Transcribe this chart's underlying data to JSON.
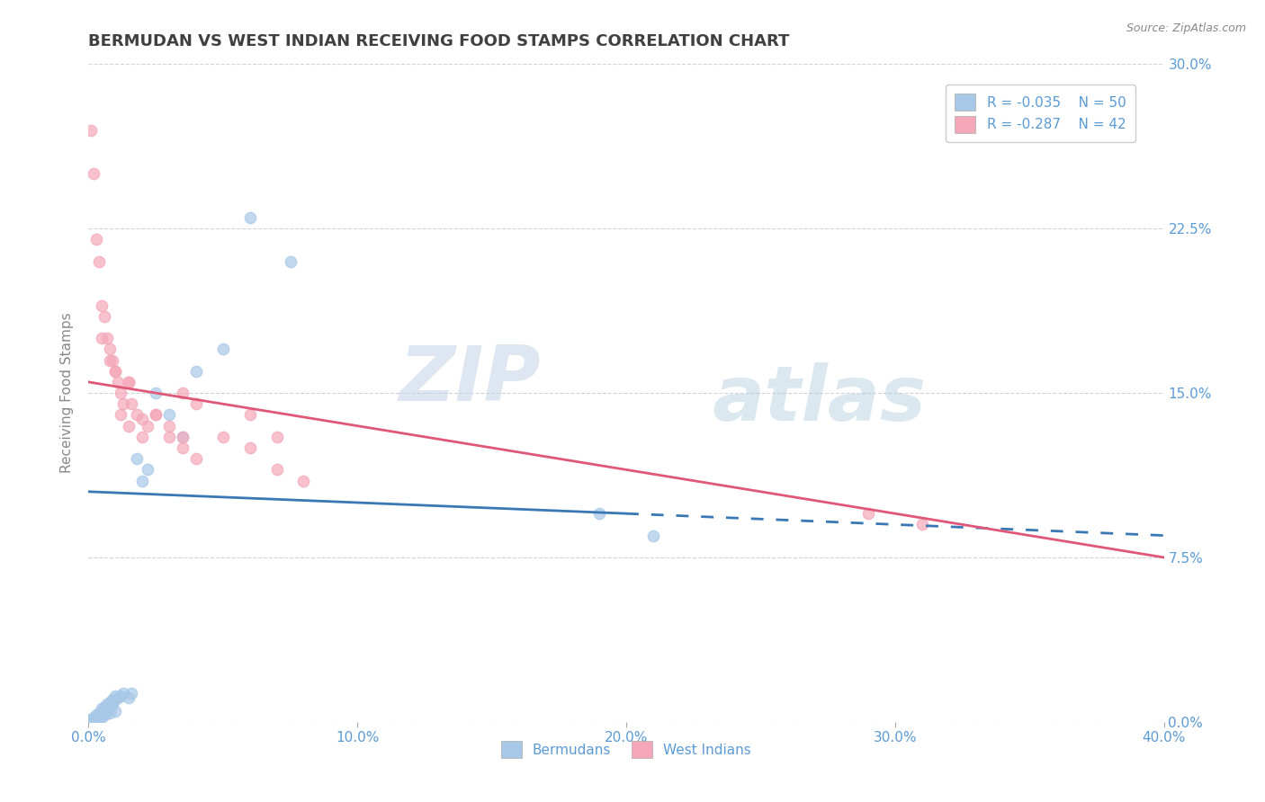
{
  "title": "BERMUDAN VS WEST INDIAN RECEIVING FOOD STAMPS CORRELATION CHART",
  "source": "Source: ZipAtlas.com",
  "xlabel_label": "Bermudans",
  "xlabel_label2": "West Indians",
  "ylabel": "Receiving Food Stamps",
  "xlim": [
    0.0,
    0.4
  ],
  "ylim": [
    0.0,
    0.3
  ],
  "xticks": [
    0.0,
    0.1,
    0.2,
    0.3,
    0.4
  ],
  "xtick_labels": [
    "0.0%",
    "10.0%",
    "20.0%",
    "30.0%",
    "40.0%"
  ],
  "yticks": [
    0.0,
    0.075,
    0.15,
    0.225,
    0.3
  ],
  "ytick_labels": [
    "0.0%",
    "7.5%",
    "15.0%",
    "22.5%",
    "30.0%"
  ],
  "legend_r1": "R = -0.035",
  "legend_n1": "N = 50",
  "legend_r2": "R = -0.287",
  "legend_n2": "N = 42",
  "blue_color": "#a8c8e8",
  "pink_color": "#f4a7b9",
  "blue_line_color": "#3a78b5",
  "pink_line_color": "#e05878",
  "text_color": "#5b9bd5",
  "title_color": "#404040",
  "grid_color": "#c8c8c8",
  "watermark_zip": "ZIP",
  "watermark_atlas": "atlas",
  "blue_line_solid_end": 0.2,
  "blue_line_start_y": 0.105,
  "blue_line_end_y": 0.085,
  "pink_line_start_y": 0.155,
  "pink_line_end_y": 0.075,
  "bermudans_x": [
    0.001,
    0.001,
    0.002,
    0.002,
    0.002,
    0.003,
    0.003,
    0.003,
    0.004,
    0.004,
    0.004,
    0.005,
    0.005,
    0.005,
    0.005,
    0.006,
    0.006,
    0.007,
    0.007,
    0.008,
    0.008,
    0.009,
    0.009,
    0.01,
    0.01,
    0.011,
    0.012,
    0.013,
    0.015,
    0.016,
    0.018,
    0.02,
    0.022,
    0.025,
    0.03,
    0.035,
    0.04,
    0.05,
    0.06,
    0.075,
    0.001,
    0.002,
    0.003,
    0.004,
    0.005,
    0.006,
    0.008,
    0.01,
    0.19,
    0.21
  ],
  "bermudans_y": [
    0.0,
    0.001,
    0.0,
    0.001,
    0.002,
    0.001,
    0.002,
    0.003,
    0.002,
    0.003,
    0.004,
    0.003,
    0.005,
    0.006,
    0.004,
    0.006,
    0.007,
    0.005,
    0.008,
    0.007,
    0.009,
    0.008,
    0.01,
    0.01,
    0.012,
    0.011,
    0.012,
    0.013,
    0.011,
    0.013,
    0.12,
    0.11,
    0.115,
    0.15,
    0.14,
    0.13,
    0.16,
    0.17,
    0.23,
    0.21,
    0.0,
    0.0,
    0.0,
    0.001,
    0.002,
    0.003,
    0.004,
    0.005,
    0.095,
    0.085
  ],
  "westindians_x": [
    0.001,
    0.002,
    0.003,
    0.004,
    0.005,
    0.006,
    0.007,
    0.008,
    0.009,
    0.01,
    0.011,
    0.012,
    0.013,
    0.015,
    0.016,
    0.018,
    0.02,
    0.022,
    0.025,
    0.03,
    0.035,
    0.04,
    0.05,
    0.06,
    0.07,
    0.08,
    0.06,
    0.07,
    0.035,
    0.04,
    0.012,
    0.015,
    0.02,
    0.025,
    0.03,
    0.035,
    0.005,
    0.008,
    0.01,
    0.015,
    0.31,
    0.29
  ],
  "westindians_y": [
    0.27,
    0.25,
    0.22,
    0.21,
    0.19,
    0.185,
    0.175,
    0.17,
    0.165,
    0.16,
    0.155,
    0.15,
    0.145,
    0.155,
    0.145,
    0.14,
    0.138,
    0.135,
    0.14,
    0.13,
    0.125,
    0.12,
    0.13,
    0.125,
    0.115,
    0.11,
    0.14,
    0.13,
    0.15,
    0.145,
    0.14,
    0.135,
    0.13,
    0.14,
    0.135,
    0.13,
    0.175,
    0.165,
    0.16,
    0.155,
    0.09,
    0.095
  ]
}
